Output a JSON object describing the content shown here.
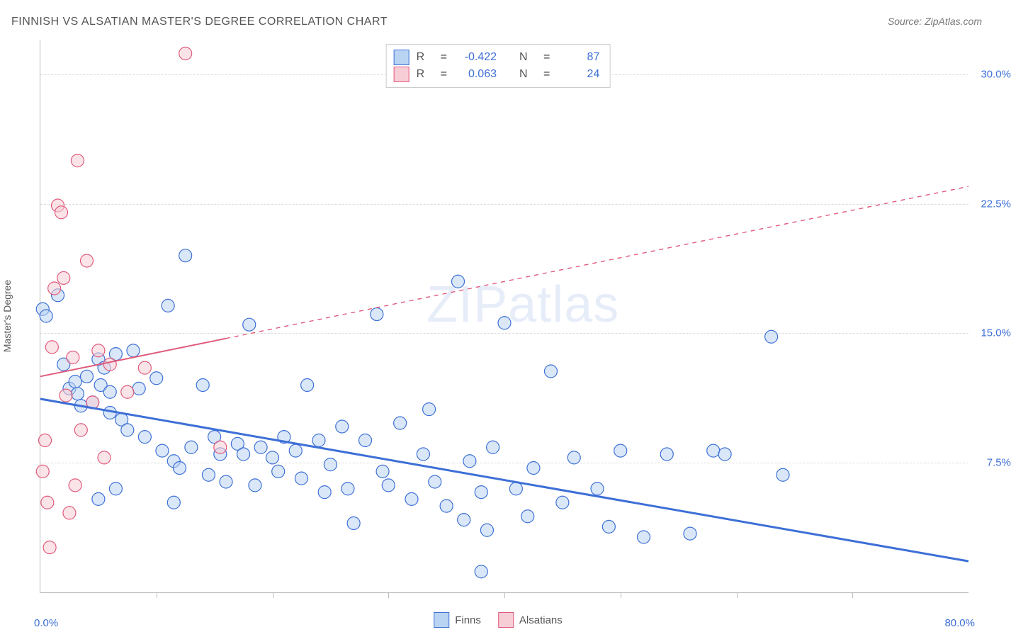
{
  "title": "FINNISH VS ALSATIAN MASTER'S DEGREE CORRELATION CHART",
  "source": "Source: ZipAtlas.com",
  "watermark_a": "ZIP",
  "watermark_b": "atlas",
  "ylabel": "Master's Degree",
  "chart": {
    "type": "scatter",
    "xlim": [
      0,
      80
    ],
    "ylim": [
      0,
      32
    ],
    "xticks": [
      10,
      20,
      30,
      40,
      50,
      60,
      70
    ],
    "yticks": [
      7.5,
      15.0,
      22.5,
      30.0
    ],
    "ytick_labels": [
      "7.5%",
      "15.0%",
      "22.5%",
      "30.0%"
    ],
    "xmin_label": "0.0%",
    "xmax_label": "80.0%",
    "background_color": "#ffffff",
    "grid_color": "#dddddd",
    "grid_dash": "4,4",
    "text_color": "#555555",
    "accent_color": "#3d6fd6",
    "marker_radius": 9,
    "marker_stroke_width": 1.2,
    "series": [
      {
        "name": "Finns",
        "color_fill": "#b9d4f2",
        "color_stroke": "#3d6fd6",
        "fill_opacity": 0.55,
        "R": "-0.422",
        "N": "87",
        "trend": {
          "x1": 0,
          "y1": 11.2,
          "x2": 80,
          "y2": 1.8,
          "solid_until_x": 80,
          "stroke_width": 3
        },
        "points": [
          [
            0.2,
            16.4
          ],
          [
            0.5,
            16.0
          ],
          [
            1.5,
            17.2
          ],
          [
            2.0,
            13.2
          ],
          [
            2.5,
            11.8
          ],
          [
            3.0,
            12.2
          ],
          [
            3.2,
            11.5
          ],
          [
            3.5,
            10.8
          ],
          [
            4.0,
            12.5
          ],
          [
            4.5,
            11.0
          ],
          [
            5.0,
            13.5
          ],
          [
            5.2,
            12.0
          ],
          [
            5.5,
            13.0
          ],
          [
            6.0,
            11.6
          ],
          [
            6.0,
            10.4
          ],
          [
            6.5,
            13.8
          ],
          [
            7.0,
            10.0
          ],
          [
            7.5,
            9.4
          ],
          [
            8.0,
            14.0
          ],
          [
            8.5,
            11.8
          ],
          [
            9.0,
            9.0
          ],
          [
            10.0,
            12.4
          ],
          [
            10.5,
            8.2
          ],
          [
            11.0,
            16.6
          ],
          [
            11.5,
            7.6
          ],
          [
            12.0,
            7.2
          ],
          [
            12.5,
            19.5
          ],
          [
            13.0,
            8.4
          ],
          [
            14.0,
            12.0
          ],
          [
            14.5,
            6.8
          ],
          [
            15.0,
            9.0
          ],
          [
            15.5,
            8.0
          ],
          [
            16.0,
            6.4
          ],
          [
            17.0,
            8.6
          ],
          [
            17.5,
            8.0
          ],
          [
            18.0,
            15.5
          ],
          [
            18.5,
            6.2
          ],
          [
            19.0,
            8.4
          ],
          [
            20.0,
            7.8
          ],
          [
            20.5,
            7.0
          ],
          [
            21.0,
            9.0
          ],
          [
            22.0,
            8.2
          ],
          [
            22.5,
            6.6
          ],
          [
            23.0,
            12.0
          ],
          [
            24.0,
            8.8
          ],
          [
            24.5,
            5.8
          ],
          [
            25.0,
            7.4
          ],
          [
            26.0,
            9.6
          ],
          [
            26.5,
            6.0
          ],
          [
            27.0,
            4.0
          ],
          [
            28.0,
            8.8
          ],
          [
            29.0,
            16.1
          ],
          [
            29.5,
            7.0
          ],
          [
            30.0,
            6.2
          ],
          [
            31.0,
            9.8
          ],
          [
            32.0,
            5.4
          ],
          [
            33.0,
            8.0
          ],
          [
            33.5,
            10.6
          ],
          [
            34.0,
            6.4
          ],
          [
            35.0,
            5.0
          ],
          [
            36.0,
            18.0
          ],
          [
            36.5,
            4.2
          ],
          [
            37.0,
            7.6
          ],
          [
            38.0,
            5.8
          ],
          [
            38.5,
            3.6
          ],
          [
            39.0,
            8.4
          ],
          [
            40.0,
            15.6
          ],
          [
            41.0,
            6.0
          ],
          [
            42.0,
            4.4
          ],
          [
            42.5,
            7.2
          ],
          [
            44.0,
            12.8
          ],
          [
            45.0,
            5.2
          ],
          [
            46.0,
            7.8
          ],
          [
            48.0,
            6.0
          ],
          [
            49.0,
            3.8
          ],
          [
            50.0,
            8.2
          ],
          [
            52.0,
            3.2
          ],
          [
            54.0,
            8.0
          ],
          [
            56.0,
            3.4
          ],
          [
            58.0,
            8.2
          ],
          [
            59.0,
            8.0
          ],
          [
            63.0,
            14.8
          ],
          [
            64.0,
            6.8
          ],
          [
            38.0,
            1.2
          ],
          [
            5.0,
            5.4
          ],
          [
            6.5,
            6.0
          ],
          [
            11.5,
            5.2
          ]
        ]
      },
      {
        "name": "Alsatians",
        "color_fill": "#f7cdd6",
        "color_stroke": "#e05a7a",
        "fill_opacity": 0.55,
        "R": "0.063",
        "N": "24",
        "trend": {
          "x1": 0,
          "y1": 12.5,
          "x2": 80,
          "y2": 23.5,
          "solid_until_x": 16,
          "stroke_width": 2
        },
        "points": [
          [
            0.2,
            7.0
          ],
          [
            0.4,
            8.8
          ],
          [
            0.6,
            5.2
          ],
          [
            0.8,
            2.6
          ],
          [
            1.0,
            14.2
          ],
          [
            1.2,
            17.6
          ],
          [
            1.5,
            22.4
          ],
          [
            1.8,
            22.0
          ],
          [
            2.0,
            18.2
          ],
          [
            2.2,
            11.4
          ],
          [
            2.5,
            4.6
          ],
          [
            2.8,
            13.6
          ],
          [
            3.0,
            6.2
          ],
          [
            3.2,
            25.0
          ],
          [
            3.5,
            9.4
          ],
          [
            4.0,
            19.2
          ],
          [
            4.5,
            11.0
          ],
          [
            5.0,
            14.0
          ],
          [
            5.5,
            7.8
          ],
          [
            6.0,
            13.2
          ],
          [
            7.5,
            11.6
          ],
          [
            9.0,
            13.0
          ],
          [
            12.5,
            31.2
          ],
          [
            15.5,
            8.4
          ]
        ]
      }
    ]
  },
  "legend_bottom": [
    {
      "name": "Finns",
      "swatch": "blue"
    },
    {
      "name": "Alsatians",
      "swatch": "pink"
    }
  ],
  "legend_top_labels": {
    "R": "R",
    "eq": "=",
    "N": "N"
  }
}
